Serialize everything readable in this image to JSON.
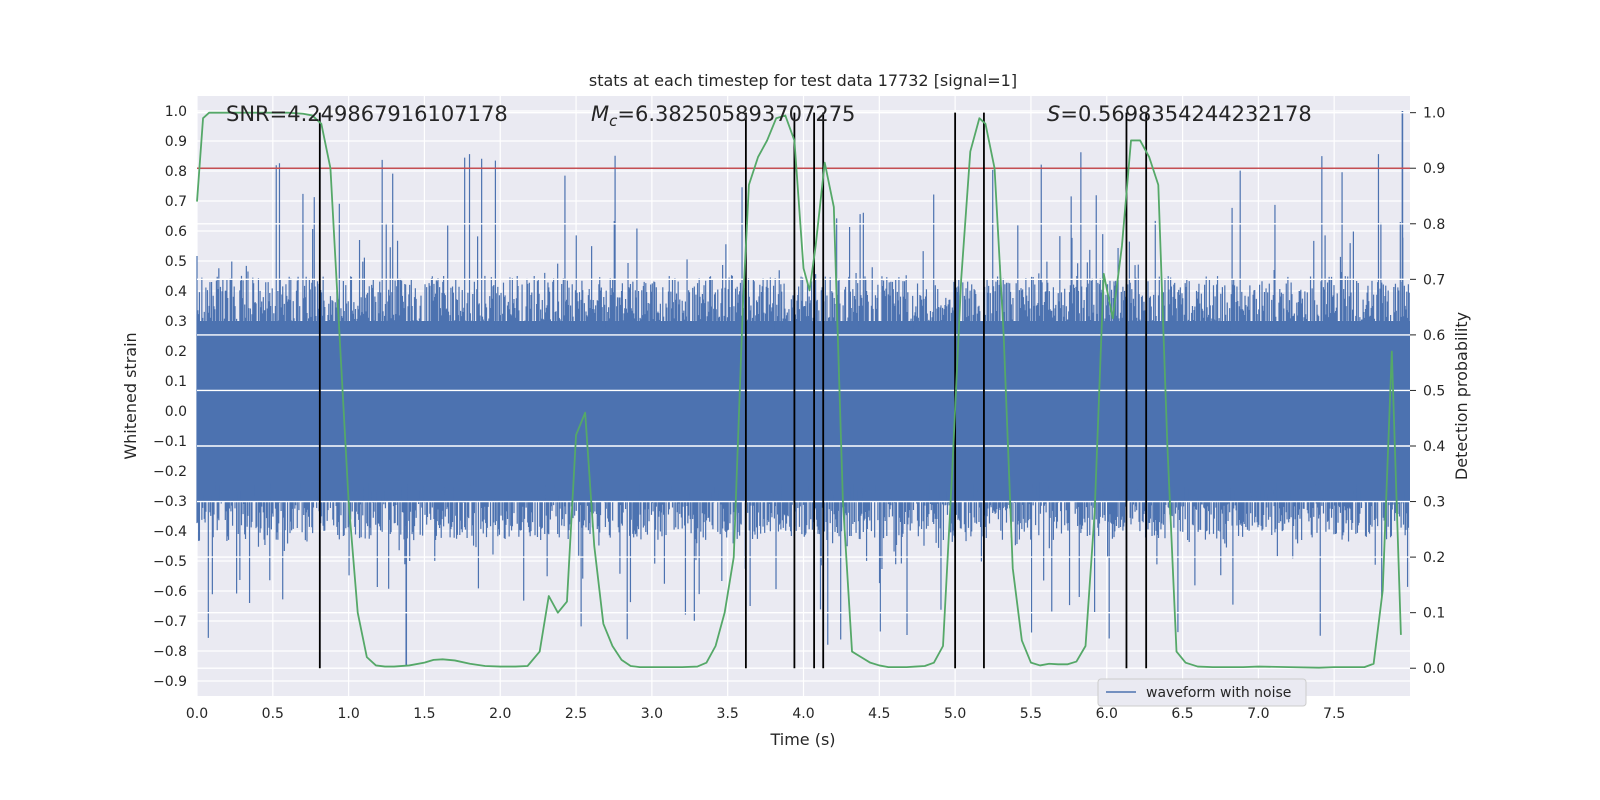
{
  "chart_data": {
    "type": "line",
    "title": "stats at each timestep for test data 17732 [signal=1]",
    "xlabel": "Time (s)",
    "ylabel_left": "Whitened strain",
    "ylabel_right": "Detection probability",
    "xlim": [
      0,
      8
    ],
    "ylim_left": [
      -0.95,
      1.05
    ],
    "ylim_right": [
      -0.05,
      1.03
    ],
    "x_ticks": [
      "0.0",
      "0.5",
      "1.0",
      "1.5",
      "2.0",
      "2.5",
      "3.0",
      "3.5",
      "4.0",
      "4.5",
      "5.0",
      "5.5",
      "6.0",
      "6.5",
      "7.0",
      "7.5"
    ],
    "y_ticks_left": [
      "1.0",
      "0.9",
      "0.8",
      "0.7",
      "0.6",
      "0.5",
      "0.4",
      "0.3",
      "0.2",
      "0.1",
      "0.0",
      "−0.1",
      "−0.2",
      "−0.3",
      "−0.4",
      "−0.5",
      "−0.6",
      "−0.7",
      "−0.8",
      "−0.9"
    ],
    "y_ticks_right": [
      "1.0",
      "0.9",
      "0.8",
      "0.7",
      "0.6",
      "0.5",
      "0.4",
      "0.3",
      "0.2",
      "0.1",
      "0.0"
    ],
    "annotations": {
      "snr": "SNR=4.249867916107178",
      "mc_symbol": "M",
      "mc_sub": "c",
      "mc_value": "=6.382505893707275",
      "s_symbol": "S",
      "s_value": "=0.5698354244232178"
    },
    "legend": {
      "label": "waveform with noise",
      "placement": "lower-right"
    },
    "threshold_probability": 0.9,
    "detection_marks_s": [
      0.81,
      3.62,
      3.94,
      4.07,
      4.13,
      5.0,
      5.19,
      6.13,
      6.26
    ],
    "series": [
      {
        "name": "waveform with noise",
        "color": "#4c72b0",
        "duration_s": 8.0,
        "typical_envelope": [
          -0.43,
          0.45
        ],
        "peak_range": [
          -0.85,
          1.0
        ]
      },
      {
        "name": "",
        "color": "#55a868",
        "x": [
          0.0,
          0.04,
          0.08,
          0.12,
          0.2,
          0.3,
          0.4,
          0.5,
          0.6,
          0.7,
          0.76,
          0.82,
          0.88,
          0.94,
          1.0,
          1.06,
          1.12,
          1.18,
          1.24,
          1.3,
          1.4,
          1.5,
          1.56,
          1.62,
          1.7,
          1.8,
          1.9,
          2.0,
          2.1,
          2.18,
          2.26,
          2.32,
          2.38,
          2.44,
          2.5,
          2.56,
          2.62,
          2.68,
          2.74,
          2.8,
          2.86,
          2.92,
          3.0,
          3.1,
          3.2,
          3.3,
          3.36,
          3.42,
          3.48,
          3.54,
          3.6,
          3.64,
          3.7,
          3.76,
          3.82,
          3.88,
          3.94,
          4.0,
          4.04,
          4.08,
          4.14,
          4.2,
          4.26,
          4.32,
          4.38,
          4.44,
          4.5,
          4.56,
          4.62,
          4.68,
          4.74,
          4.8,
          4.86,
          4.92,
          4.98,
          5.04,
          5.1,
          5.16,
          5.2,
          5.26,
          5.32,
          5.38,
          5.44,
          5.5,
          5.56,
          5.62,
          5.68,
          5.74,
          5.8,
          5.86,
          5.92,
          5.98,
          6.04,
          6.1,
          6.16,
          6.22,
          6.28,
          6.34,
          6.4,
          6.46,
          6.52,
          6.6,
          6.7,
          6.8,
          6.9,
          7.0,
          7.2,
          7.4,
          7.5,
          7.6,
          7.7,
          7.76,
          7.82,
          7.88,
          7.94
        ],
        "values": [
          0.84,
          0.99,
          1.0,
          1.0,
          1.0,
          1.0,
          1.0,
          1.0,
          1.0,
          0.998,
          0.995,
          0.98,
          0.9,
          0.6,
          0.3,
          0.1,
          0.02,
          0.005,
          0.003,
          0.003,
          0.005,
          0.01,
          0.015,
          0.016,
          0.014,
          0.008,
          0.004,
          0.003,
          0.003,
          0.004,
          0.03,
          0.13,
          0.1,
          0.12,
          0.42,
          0.46,
          0.22,
          0.08,
          0.04,
          0.015,
          0.004,
          0.002,
          0.002,
          0.002,
          0.002,
          0.003,
          0.01,
          0.04,
          0.1,
          0.2,
          0.65,
          0.87,
          0.92,
          0.95,
          0.99,
          0.995,
          0.95,
          0.72,
          0.68,
          0.76,
          0.91,
          0.83,
          0.3,
          0.03,
          0.02,
          0.01,
          0.005,
          0.002,
          0.002,
          0.002,
          0.003,
          0.004,
          0.01,
          0.04,
          0.35,
          0.7,
          0.93,
          0.99,
          0.98,
          0.9,
          0.6,
          0.18,
          0.05,
          0.01,
          0.005,
          0.008,
          0.007,
          0.007,
          0.012,
          0.04,
          0.28,
          0.71,
          0.63,
          0.76,
          0.95,
          0.95,
          0.92,
          0.87,
          0.4,
          0.03,
          0.01,
          0.003,
          0.002,
          0.002,
          0.002,
          0.003,
          0.002,
          0.001,
          0.002,
          0.002,
          0.002,
          0.008,
          0.14,
          0.57,
          0.06
        ]
      },
      {
        "name": "",
        "color": "#c44e52",
        "type": "hline",
        "value": 0.9
      }
    ]
  }
}
